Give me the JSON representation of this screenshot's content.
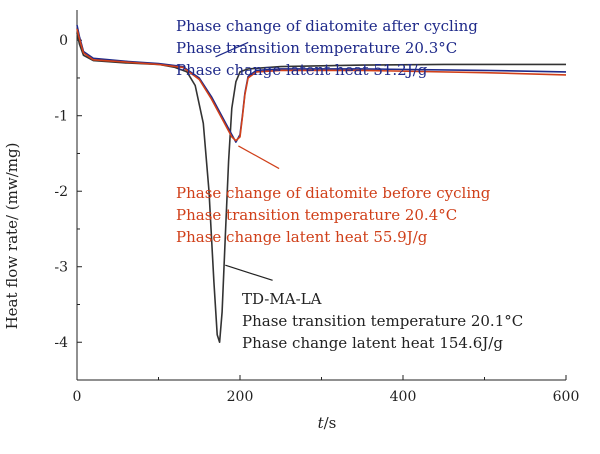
{
  "chart_data": {
    "type": "line",
    "title": "",
    "xlabel": "t/s",
    "xlabel_italic": "t",
    "xlabel_unit": "/s",
    "ylabel": "Heat flow rate/ (mw/mg)",
    "xlim": [
      0,
      600
    ],
    "ylim": [
      -4.5,
      0.4
    ],
    "xticks": [
      0,
      200,
      400,
      600
    ],
    "yticks": [
      0,
      -1,
      -2,
      -3,
      -4
    ],
    "grid": false,
    "series": [
      {
        "name": "TD-MA-LA",
        "color": "#333333",
        "points": [
          [
            0,
            0.1
          ],
          [
            3,
            -0.05
          ],
          [
            8,
            -0.2
          ],
          [
            20,
            -0.27
          ],
          [
            60,
            -0.3
          ],
          [
            100,
            -0.32
          ],
          [
            120,
            -0.36
          ],
          [
            135,
            -0.42
          ],
          [
            145,
            -0.6
          ],
          [
            155,
            -1.1
          ],
          [
            162,
            -2.0
          ],
          [
            168,
            -3.2
          ],
          [
            172,
            -3.9
          ],
          [
            175,
            -4.0
          ],
          [
            178,
            -3.6
          ],
          [
            182,
            -2.6
          ],
          [
            186,
            -1.6
          ],
          [
            190,
            -0.9
          ],
          [
            195,
            -0.55
          ],
          [
            200,
            -0.42
          ],
          [
            210,
            -0.38
          ],
          [
            250,
            -0.35
          ],
          [
            350,
            -0.33
          ],
          [
            450,
            -0.32
          ],
          [
            600,
            -0.32
          ]
        ]
      },
      {
        "name": "Phase change of diatomite after cycling",
        "color": "#1f2a8a",
        "points": [
          [
            0,
            0.2
          ],
          [
            3,
            0.05
          ],
          [
            8,
            -0.15
          ],
          [
            20,
            -0.24
          ],
          [
            60,
            -0.28
          ],
          [
            100,
            -0.31
          ],
          [
            130,
            -0.35
          ],
          [
            150,
            -0.5
          ],
          [
            165,
            -0.75
          ],
          [
            180,
            -1.05
          ],
          [
            190,
            -1.25
          ],
          [
            195,
            -1.35
          ],
          [
            200,
            -1.25
          ],
          [
            203,
            -1.0
          ],
          [
            206,
            -0.7
          ],
          [
            210,
            -0.48
          ],
          [
            220,
            -0.4
          ],
          [
            250,
            -0.38
          ],
          [
            350,
            -0.38
          ],
          [
            500,
            -0.4
          ],
          [
            600,
            -0.42
          ]
        ]
      },
      {
        "name": "Phase change of diatomite before cycling",
        "color": "#d0401a",
        "points": [
          [
            0,
            0.15
          ],
          [
            3,
            0.02
          ],
          [
            8,
            -0.17
          ],
          [
            20,
            -0.26
          ],
          [
            60,
            -0.29
          ],
          [
            100,
            -0.32
          ],
          [
            130,
            -0.36
          ],
          [
            150,
            -0.52
          ],
          [
            165,
            -0.78
          ],
          [
            180,
            -1.08
          ],
          [
            190,
            -1.28
          ],
          [
            195,
            -1.33
          ],
          [
            200,
            -1.28
          ],
          [
            203,
            -1.02
          ],
          [
            206,
            -0.72
          ],
          [
            210,
            -0.5
          ],
          [
            220,
            -0.42
          ],
          [
            250,
            -0.4
          ],
          [
            350,
            -0.4
          ],
          [
            500,
            -0.43
          ],
          [
            600,
            -0.46
          ]
        ]
      }
    ],
    "annotations": [
      {
        "color": "#1f2a8a",
        "lines": [
          "Phase change of diatomite after cycling",
          "Phase transition temperature 20.3°C",
          "Phase change latent heat 51.2J/g"
        ],
        "pointer_to": [
          170,
          -0.22
        ],
        "pointer_from": [
          210,
          -0.03
        ]
      },
      {
        "color": "#d0401a",
        "lines": [
          "Phase change of diatomite before cycling",
          "Phase transition temperature 20.4°C",
          "Phase change latent heat 55.9J/g"
        ],
        "pointer_to": [
          198,
          -1.4
        ],
        "pointer_from": [
          248,
          -1.7
        ]
      },
      {
        "color": "#222222",
        "lines": [
          "TD-MA-LA",
          "Phase transition temperature 20.1°C",
          "Phase change latent heat 154.6J/g"
        ],
        "pointer_to": [
          182,
          -2.98
        ],
        "pointer_from": [
          240,
          -3.18
        ]
      }
    ]
  }
}
